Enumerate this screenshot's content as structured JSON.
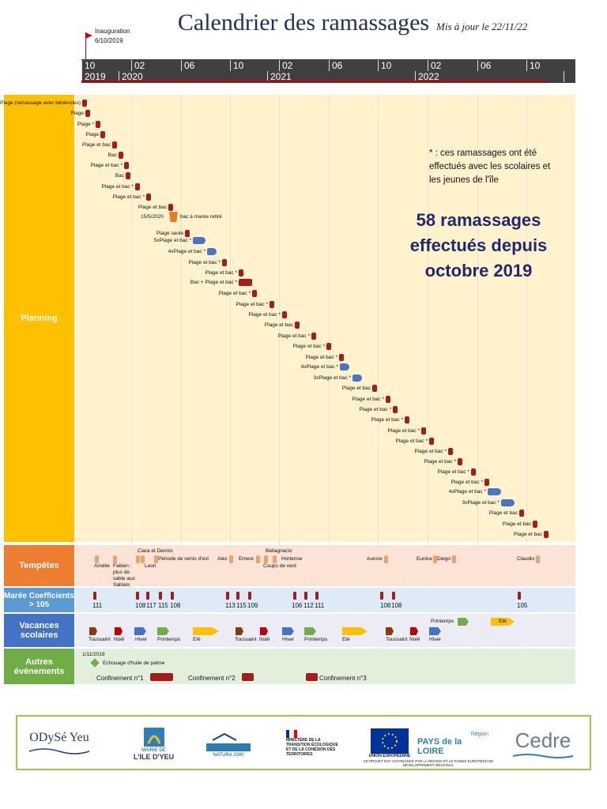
{
  "header": {
    "title": "Calendrier des ramassages",
    "update": "Mis à jour le 22/11/22",
    "inauguration_label": "Inauguration",
    "inauguration_date": "6/10/2019"
  },
  "timeline": {
    "months": [
      "10",
      "02",
      "06",
      "10",
      "02",
      "06",
      "10",
      "02",
      "06",
      "10"
    ],
    "years": [
      "2019",
      "2020",
      "2021",
      "2022"
    ]
  },
  "rows": {
    "planning": "Planning",
    "tempetes": "Tempêtes",
    "maree": "Marée Coefficients > 105",
    "vacances": "Vacances scolaires",
    "autres": "Autres événements"
  },
  "note": "* : ces ramassages ont été effectués avec les scolaires et les jeunes de l'île",
  "big": "58 ramassages effectués depuis octobre 2019",
  "planning": [
    {
      "label": "Plage (ramassage avec bénévoles)"
    },
    {
      "label": "Plage"
    },
    {
      "label": "Plage *"
    },
    {
      "label": "Plage"
    },
    {
      "label": "Plage et bac"
    },
    {
      "label": "Bac"
    },
    {
      "label": "Plage et bac *"
    },
    {
      "label": "Bac"
    },
    {
      "label": "Plage et bac *"
    },
    {
      "label": "Plage et bac *"
    },
    {
      "label": "Plage et bac"
    },
    {
      "label": "bac à marée retiré",
      "date": "15/5/2020"
    },
    {
      "label": "Plage seule"
    },
    {
      "label": "5xPlage et bac *"
    },
    {
      "label": "4xPlage et bac *"
    },
    {
      "label": "Plage et bac *"
    },
    {
      "label": "Plage et bac *"
    },
    {
      "label": "Bac + Plage et bac *"
    },
    {
      "label": "Plage et bac *"
    },
    {
      "label": "Plage et bac *"
    },
    {
      "label": "Plage et bac *"
    },
    {
      "label": "Plage et bac"
    },
    {
      "label": "Plage et bac *"
    },
    {
      "label": "Plage et bac *"
    },
    {
      "label": "Plage et bac *"
    },
    {
      "label": "4xPlage et bac *"
    },
    {
      "label": "3xPlage et bac *"
    },
    {
      "label": "Plage et bac"
    },
    {
      "label": "Plage et bac *"
    },
    {
      "label": "Plage et bac *"
    },
    {
      "label": "Plage et bac *"
    },
    {
      "label": "Plage et bac *"
    },
    {
      "label": "Plage et bac *"
    },
    {
      "label": "Plage et bac *"
    },
    {
      "label": "Plage et bac *"
    },
    {
      "label": "Plage et bac *"
    },
    {
      "label": "Plage et bac *"
    },
    {
      "label": "4xPlage et bac *"
    },
    {
      "label": "3xPlage et bac *"
    },
    {
      "label": "Plage et bac"
    },
    {
      "label": "Plage et bac"
    },
    {
      "label": "Plage et bac"
    }
  ],
  "storms": {
    "amelie": "Amélie",
    "fabien": "Fabien : plus de sable aux Sablais",
    "ciara": "Ciara et Dennis",
    "leon": "Leon",
    "vents": "Période de vents d'est",
    "alex": "Alex",
    "ernest": "Ernest",
    "bella": "Bellagnacio",
    "hortense": "Hortense",
    "coups": "Coups de vent",
    "aurore": "Aurore",
    "eunice": "Eunice",
    "diego": "Diego",
    "claudio": "Claudio"
  },
  "tides": [
    "111",
    "108",
    "117",
    "115",
    "108",
    "113",
    "115",
    "109",
    "106",
    "112",
    "111",
    "108",
    "108",
    "105"
  ],
  "vacances": {
    "toussaint": "Toussaint",
    "noel": "Noël",
    "hiver": "Hiver",
    "printemps": "Printemps",
    "ete": "Eté"
  },
  "autres": {
    "date": "1/11/2019",
    "echouage": "Echouage d'huile de palme",
    "c1": "Confinement n°1",
    "c2": "Confinement n°2",
    "c3": "Confinement n°3"
  },
  "logos": {
    "odyseyeu": "ODySé Yeu",
    "mairie1": "MAIRIE DE",
    "mairie2": "L'ILE D'YEU",
    "natura": "NATURA 2000",
    "ministere": "MINISTÈRE DE LA TRANSITION ÉCOLOGIQUE ET DE LA COHÉSION DES TERRITOIRES",
    "ue": "UNION EUROPÉENNE",
    "region": "Région",
    "pays": "PAYS de la LOIRE",
    "cofin": "CE PROJET EST CO-FINANCÉ PAR LA RÉGION ET LE FONDS EUROPÉEN DE DÉVELOPPEMENT RÉGIONAL",
    "cedre": "Cedre"
  },
  "colors": {
    "planning": "#ffc000",
    "tempetes": "#ed7d31",
    "maree": "#5b9bd5",
    "vacances": "#4472c4",
    "autres": "#70ad47"
  }
}
